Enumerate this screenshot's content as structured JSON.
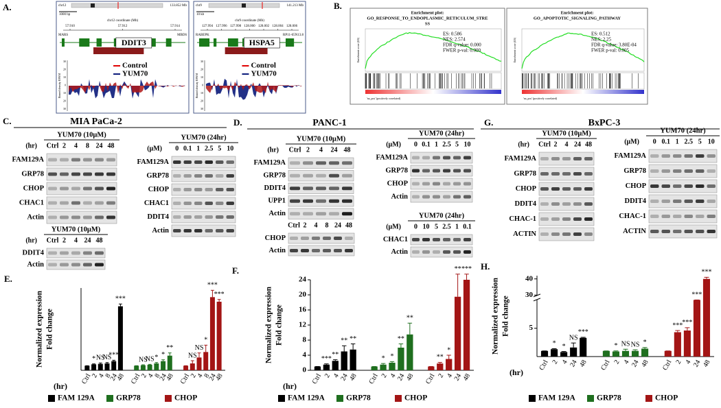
{
  "panel_a": {
    "label": "A.",
    "legend": [
      "Control",
      "YUM70"
    ],
    "tracks": [
      {
        "gene": "DDIT3",
        "chromosome": "chr12",
        "size_label": "133.852 Mb",
        "scale_label": "1000 bp",
        "axis_label": "chr12 coordinate (Mb)",
        "positions": [
          "57.910",
          "57.912",
          "57.914"
        ],
        "left_gene": "MARS",
        "right_gene": "MBD6",
        "y_label": "Binned density RPKM",
        "y_ticks": [
          "30",
          "20",
          "10",
          "0",
          "10",
          "20",
          "30"
        ]
      },
      {
        "gene": "HSPA5",
        "chromosome": "chr9",
        "size_label": "141.213 Mb",
        "scale_label": "10 kb",
        "axis_label": "chr9 coordinate (Mb)",
        "positions": [
          "127.994",
          "127.996",
          "127.998",
          "128.000",
          "128.002",
          "128.004",
          "128.006"
        ],
        "left_gene": "RABEPK",
        "right_gene": "RP11-65N13.8",
        "y_label": "Binned density RPKM",
        "y_ticks": [
          "30",
          "20",
          "10",
          "0",
          "10",
          "20",
          "30"
        ]
      }
    ]
  },
  "panel_b": {
    "label": "B.",
    "plots": [
      {
        "header": "Enrichment plot:",
        "name_lines": [
          "GO_RESPONSE_TO_ENDOPLASMIC_RETICULUM_STRE",
          "SS"
        ],
        "stats": [
          "ES: 0.586",
          "NES: 2.574",
          "FDR q-value: 0.000",
          "FWER p-val: 0.000"
        ],
        "y_label": "Enrichment score (ES)",
        "ranked_label": "'na_pos' (positively correlated)"
      },
      {
        "header": "Enrichment plot:",
        "name_lines": [
          "GO_APOPTOTIC_SIGNALING_PATHWAY"
        ],
        "stats": [
          "ES: 0.512",
          "NES: 2.25",
          "FDR q-value: 3.80E-04",
          "FWER p-val: 0.005"
        ],
        "y_label": "Enrichment score (ES)",
        "ranked_label": "'na_pos' (positively correlated)"
      }
    ]
  },
  "panel_c": {
    "label": "C.",
    "title": "MIA PaCa-2",
    "blots": [
      {
        "treatment": "YUM70 (10μM)",
        "unit": "(hr)",
        "lanes": [
          "Ctrl",
          "2",
          "4",
          "8",
          "24",
          "48"
        ],
        "rows": [
          "FAM129A",
          "GRP78",
          "CHOP",
          "CHAC1",
          "Actin"
        ]
      },
      {
        "treatment": "YUM70 (24hr)",
        "unit": "(μM)",
        "lanes": [
          "0",
          "0.1",
          "1",
          "2.5",
          "5",
          "10"
        ],
        "rows": [
          "FAM129A",
          "GRP78",
          "CHOP",
          "CHAC1",
          "DDIT4",
          "Actin"
        ]
      },
      {
        "treatment": "YUM70 (10μM)",
        "unit": "(hr)",
        "lanes": [
          "Ctrl",
          "2",
          "4",
          "24",
          "48"
        ],
        "rows": [
          "DDIT4",
          "Actin"
        ]
      }
    ]
  },
  "panel_d": {
    "label": "D.",
    "title": "PANC-1",
    "blots": [
      {
        "treatment": "YUM70 (10μM)",
        "unit": "(hr)",
        "lanes": [
          "Ctrl",
          "2",
          "4",
          "24",
          "48"
        ],
        "rows": [
          "FAM129A",
          "GRP78",
          "DDIT4",
          "UPP1",
          "Actin"
        ]
      },
      {
        "lanes": [
          "Ctrl",
          "2",
          "4",
          "8",
          "24",
          "48"
        ],
        "rows": [
          "CHOP",
          "Actin"
        ]
      },
      {
        "treatment": "YUM70 (24hr)",
        "unit": "(μM)",
        "lanes": [
          "0",
          "0.1",
          "1",
          "2.5",
          "5",
          "10"
        ],
        "rows": [
          "FAM129A",
          "GRP78",
          "CHOP",
          "Actin"
        ]
      },
      {
        "treatment": "YUM70 (24hr)",
        "unit": "(μM)",
        "lanes": [
          "0",
          "10",
          "5",
          "2.5",
          "1",
          "0.1"
        ],
        "rows": [
          "CHAC1",
          "Actin"
        ]
      }
    ]
  },
  "panel_g": {
    "label": "G.",
    "title": "BxPC-3",
    "blots": [
      {
        "treatment": "YUM70 (10μM)",
        "unit": "(hr)",
        "lanes": [
          "Ctrl",
          "2",
          "4",
          "24",
          "48"
        ],
        "rows": [
          "FAM129A",
          "GRP78",
          "CHOP",
          "DDIT4",
          "CHAC-1",
          "ACTIN"
        ]
      },
      {
        "treatment": "YUM70 (24hr)",
        "unit": "(μM)",
        "lanes": [
          "0",
          "0.1",
          "1",
          "2.5",
          "5",
          "10"
        ],
        "rows": [
          "FAM129A",
          "GRP78",
          "CHOP",
          "DDIT4",
          "CHAC-1",
          "ACTIN"
        ]
      }
    ]
  },
  "chart_data": [
    {
      "type": "bar",
      "label": "E.",
      "y_label_lines": [
        "Normalized expression",
        "Fold change"
      ],
      "x_unit": "(hr)",
      "categories": [
        "Ctrl",
        "2",
        "4",
        "8",
        "24",
        "48"
      ],
      "ylim": [
        0,
        18
      ],
      "series": [
        {
          "name": "FAM 129A",
          "color": "#000000",
          "values": [
            1,
            1.3,
            1.4,
            1.5,
            2,
            14
          ],
          "errors": [
            0,
            0.1,
            0.2,
            0.2,
            0.2,
            0.5
          ],
          "significance": [
            null,
            "*",
            "NS",
            "NS",
            "***",
            "***"
          ]
        },
        {
          "name": "GRP78",
          "color": "#1f6f1f",
          "values": [
            1,
            1.1,
            1.2,
            1.5,
            2,
            3.2
          ],
          "errors": [
            0,
            0.1,
            0.1,
            0.2,
            0.3,
            0.6
          ],
          "significance": [
            null,
            "NS",
            "NS",
            "*",
            "*",
            "**"
          ]
        },
        {
          "name": "CHOP",
          "color": "#a31515",
          "values": [
            1,
            1.5,
            2.8,
            4,
            16,
            15
          ],
          "errors": [
            0,
            0.6,
            1,
            1.5,
            1.5,
            0.5
          ],
          "significance": [
            null,
            "NS",
            "NS",
            "*",
            "***",
            "***"
          ]
        }
      ]
    },
    {
      "type": "bar",
      "label": "F.",
      "y_label_lines": [
        "Normalized expression",
        "Fold change"
      ],
      "x_unit": "(hr)",
      "categories": [
        "Ctrl",
        "2",
        "4",
        "24",
        "48"
      ],
      "ylim": [
        0,
        24
      ],
      "yticks": [
        0,
        4,
        8,
        12,
        16,
        20,
        24
      ],
      "series": [
        {
          "name": "FAM 129A",
          "color": "#000000",
          "values": [
            1,
            1.5,
            2.5,
            5,
            5.5
          ],
          "errors": [
            0,
            0.2,
            0.3,
            1.5,
            1.5
          ],
          "significance": [
            null,
            "***",
            "**",
            "**",
            "**"
          ]
        },
        {
          "name": "GRP78",
          "color": "#1f6f1f",
          "values": [
            1,
            1.5,
            2,
            6,
            9.5
          ],
          "errors": [
            0,
            0.3,
            0.3,
            1,
            3
          ],
          "significance": [
            null,
            "*",
            "*",
            "**",
            "**"
          ]
        },
        {
          "name": "CHOP",
          "color": "#a31515",
          "values": [
            1,
            1.8,
            3,
            19.5,
            24
          ],
          "errors": [
            0,
            0.3,
            1,
            6,
            1.5
          ],
          "significance": [
            null,
            "**",
            "*",
            "**",
            "***"
          ]
        }
      ]
    },
    {
      "type": "bar",
      "label": "H.",
      "y_label_lines": [
        "Normalized expression",
        "Fold change"
      ],
      "x_unit": "(hr)",
      "categories": [
        "Ctrl",
        "2",
        "4",
        "24",
        "48"
      ],
      "ylim": [
        0,
        42
      ],
      "ybreak": [
        10,
        30
      ],
      "yticks": [
        5,
        30,
        40
      ],
      "series": [
        {
          "name": "FAM 129A",
          "color": "#000000",
          "values": [
            1,
            1.3,
            0.8,
            1.6,
            3.3
          ],
          "errors": [
            0,
            0.1,
            0.1,
            0.8,
            0.1
          ],
          "significance": [
            null,
            "*",
            "*",
            "NS",
            "***"
          ]
        },
        {
          "name": "GRP78",
          "color": "#1f6f1f",
          "values": [
            1,
            0.9,
            1,
            1,
            1.4
          ],
          "errors": [
            0,
            0.1,
            0.3,
            0.2,
            0.2
          ],
          "significance": [
            null,
            "*",
            "NS",
            "NS",
            "*"
          ]
        },
        {
          "name": "CHOP",
          "color": "#a31515",
          "values": [
            1,
            4.3,
            4.6,
            10,
            40
          ],
          "errors": [
            0,
            0.3,
            0.5,
            0,
            1
          ],
          "significance": [
            null,
            "***",
            "***",
            "***",
            "***"
          ]
        }
      ]
    }
  ]
}
